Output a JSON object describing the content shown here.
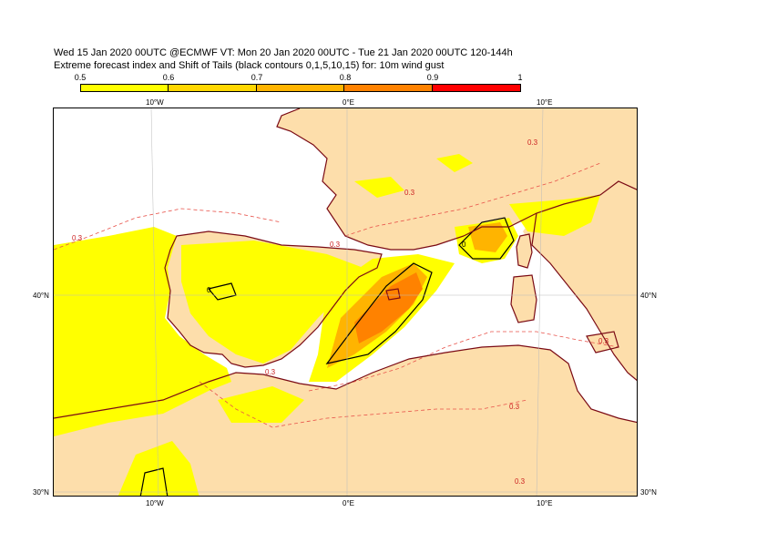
{
  "header": {
    "line1": "Wed 15 Jan 2020 00UTC @ECMWF VT: Mon 20 Jan 2020 00UTC - Tue 21 Jan 2020 00UTC  120-144h",
    "line2": "Extreme forecast index and Shift of Tails (black contours 0,1,5,10,15) for: 10m wind gust"
  },
  "legend": {
    "ticks": [
      "0.5",
      "0.6",
      "0.7",
      "0.8",
      "0.9",
      "1"
    ],
    "colors": [
      "#ffff00",
      "#ffd700",
      "#ffb400",
      "#ff8200",
      "#ff0000"
    ]
  },
  "map": {
    "land_color": "#fddeab",
    "sea_color": "#ffffff",
    "coast_color": "#7a0a14",
    "contour_label": "0.3",
    "sot_label": "0",
    "axis_top": [
      "10°W",
      "0°E",
      "10°E"
    ],
    "axis_bottom": [
      "10°W",
      "0°E",
      "10°E"
    ],
    "axis_left": [
      "40°N",
      "30°N"
    ],
    "axis_right": [
      "40°N",
      "30°N"
    ]
  }
}
